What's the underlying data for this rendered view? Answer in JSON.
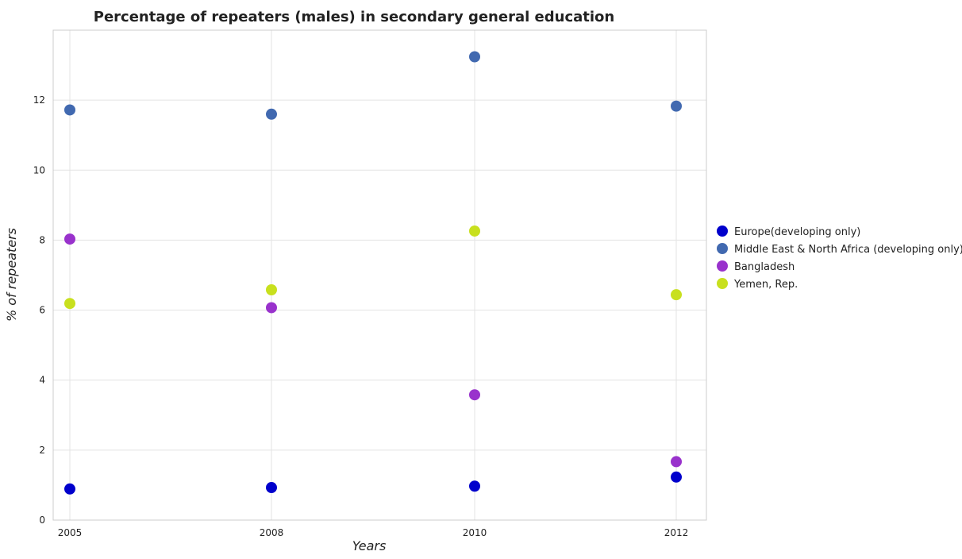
{
  "chart_data": {
    "type": "scatter",
    "title": "Percentage of repeaters (males) in secondary general education",
    "xlabel": "Years",
    "ylabel": "% of repeaters",
    "categories": [
      "2005",
      "2008",
      "2010",
      "2012"
    ],
    "ylim": [
      0,
      14
    ],
    "yticks": [
      0,
      2,
      4,
      6,
      8,
      10,
      12
    ],
    "grid": true,
    "legend_position": "right",
    "series": [
      {
        "name": "Europe(developing only)",
        "color": "#0000cc",
        "values": [
          0.89,
          0.93,
          0.97,
          1.23
        ]
      },
      {
        "name": "Middle East & North Africa (developing only)",
        "color": "#4169b0",
        "values": [
          11.72,
          11.6,
          13.24,
          11.83
        ]
      },
      {
        "name": "Bangladesh",
        "color": "#9932cc",
        "values": [
          8.03,
          6.07,
          3.58,
          1.67
        ]
      },
      {
        "name": "Yemen, Rep.",
        "color": "#c8e01e",
        "values": [
          6.19,
          6.58,
          8.26,
          6.44
        ]
      }
    ]
  }
}
